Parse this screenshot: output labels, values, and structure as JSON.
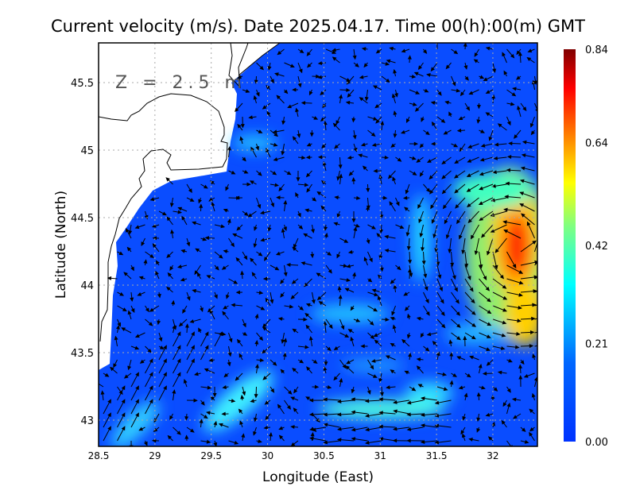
{
  "title": "Current velocity (m/s). Date 2025.04.17. Time 00(h):00(m) GMT",
  "depth_label": "Z = 2.5 m",
  "map": {
    "xlabel": "Longitude (East)",
    "ylabel": "Latitude (North)",
    "lon_range": [
      28.5,
      32.4
    ],
    "lat_range": [
      42.8,
      45.8
    ],
    "x_ticks": [
      "28.5",
      "29",
      "29.5",
      "30",
      "30.5",
      "31",
      "31.5",
      "32"
    ],
    "y_ticks": [
      "43",
      "43.5",
      "44",
      "44.5",
      "45",
      "45.5"
    ],
    "grid": true,
    "land_color": "#ffffff",
    "background_water_color": "#0a4dff"
  },
  "colorbar": {
    "ticks": [
      "0.84",
      "0.64",
      "0.42",
      "0.21",
      "0.00"
    ],
    "range": [
      0,
      0.84
    ],
    "colors": [
      "#0033ff",
      "#0080ff",
      "#00ffff",
      "#80ff80",
      "#ffff00",
      "#ff8000",
      "#ff0000",
      "#800000"
    ]
  }
}
